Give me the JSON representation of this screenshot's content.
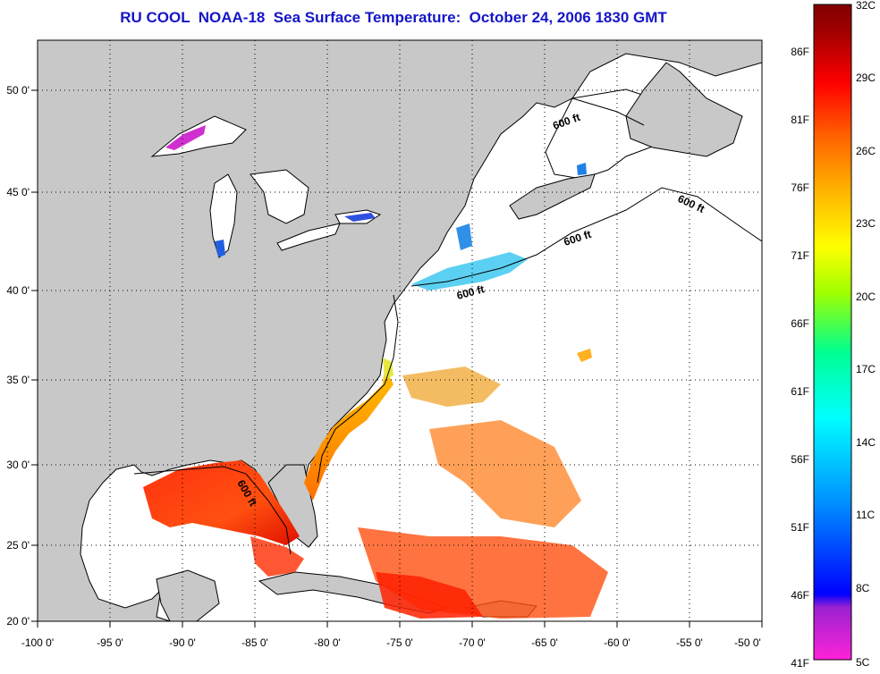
{
  "title": "RU COOL  NOAA-18  Sea Surface Temperature:  October 24, 2006 1830 GMT",
  "map": {
    "lon_labels": [
      "-100 0'",
      "-95 0'",
      "-90 0'",
      "-85 0'",
      "-80 0'",
      "-75 0'",
      "-70 0'",
      "-65 0'",
      "-60 0'",
      "-55 0'",
      "-50 0'"
    ],
    "lat_labels": [
      "50 0'",
      "45 0'",
      "40 0'",
      "35 0'",
      "30 0'",
      "25 0'",
      "20 0'"
    ],
    "lon_range": [
      -100,
      -50
    ],
    "lat_range": [
      20,
      52.5
    ],
    "isobath_labels": [
      "600 ft",
      "600 ft",
      "600 ft",
      "600 ft",
      "600 ft"
    ],
    "colors": {
      "land": "#c8c8c8",
      "ocean_no_data": "#ffffff",
      "grid": "#000000"
    }
  },
  "colorbar": {
    "celsius_labels": [
      "32C",
      "29C",
      "26C",
      "23C",
      "20C",
      "17C",
      "14C",
      "11C",
      "8C",
      "5C"
    ],
    "fahrenheit_labels": [
      "86F",
      "81F",
      "76F",
      "71F",
      "66F",
      "61F",
      "56F",
      "51F",
      "46F",
      "41F"
    ],
    "celsius_range": [
      5,
      32
    ],
    "colors": [
      "#ff22d8",
      "#9a22d0",
      "#0000ff",
      "#00a0ff",
      "#00ffff",
      "#00ff90",
      "#a0ff00",
      "#ffff00",
      "#ffb000",
      "#ff6000",
      "#ff0000",
      "#a00000",
      "#800000"
    ]
  }
}
